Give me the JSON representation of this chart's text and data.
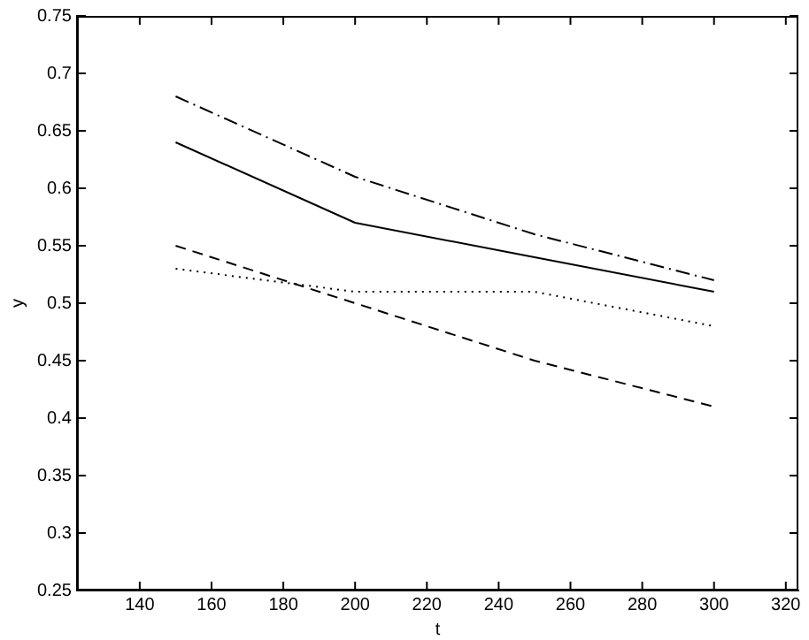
{
  "chart_data": {
    "type": "line",
    "xlabel": "t",
    "ylabel": "y",
    "x": [
      150,
      200,
      250,
      300
    ],
    "xlim": [
      122.5,
      323.5
    ],
    "xticks": [
      140,
      160,
      180,
      200,
      220,
      240,
      260,
      280,
      300,
      320
    ],
    "ylim": [
      0.25,
      0.75
    ],
    "yticks": [
      0.25,
      0.3,
      0.35,
      0.4,
      0.45,
      0.5,
      0.55,
      0.6,
      0.65,
      0.7,
      0.75
    ],
    "grid": false,
    "legend": false,
    "marker": "none",
    "series": [
      {
        "color": "#000000",
        "line_style": "solid",
        "values": [
          0.64,
          0.57,
          0.54,
          0.51
        ]
      },
      {
        "color": "#000000",
        "line_style": "dashdot",
        "values": [
          0.68,
          0.61,
          0.56,
          0.52
        ]
      },
      {
        "color": "#000000",
        "line_style": "dashed",
        "values": [
          0.55,
          0.5,
          0.45,
          0.41
        ]
      },
      {
        "color": "#000000",
        "line_style": "dotted",
        "values": [
          0.53,
          0.51,
          0.51,
          0.48
        ]
      }
    ]
  }
}
